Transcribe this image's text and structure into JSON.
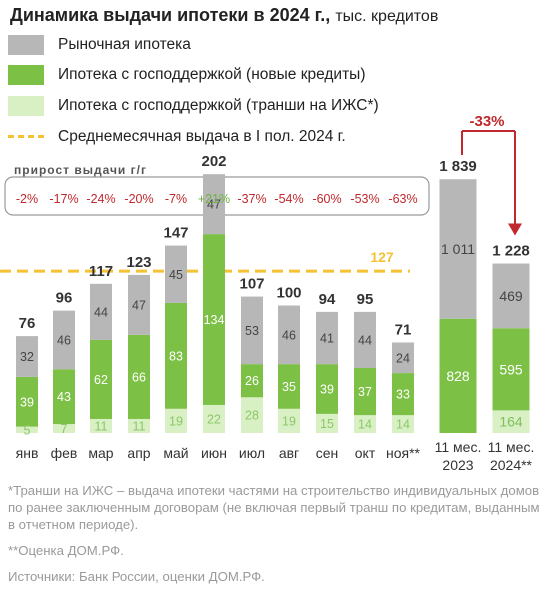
{
  "title_bold": "Динамика выдачи ипотеки в 2024 г.,",
  "title_unit": "тыс. кредитов",
  "growth_title": "прирост выдачи г/г",
  "footnotes": {
    "tranche_note": "*Транши на ИЖС – выдача ипотеки частями на строительство индивидуальных домов по ранее заключенным договорам (не включая первый транш по кредитам, выданным в отчетном периоде).",
    "estimate_note": "**Оценка ДОМ.РФ.",
    "sources": "Источники: Банк России, оценки ДОМ.РФ."
  },
  "colors": {
    "market": "#B7B7B7",
    "state_new": "#7CC045",
    "state_tranche": "#D9EFC4",
    "average_line": "#F5C234",
    "negative": "#C0282D",
    "positive": "#6DB33F"
  },
  "chart_data": {
    "type": "bar",
    "stacked": true,
    "categories": [
      "янв",
      "фев",
      "мар",
      "апр",
      "май",
      "июн",
      "июл",
      "авг",
      "сен",
      "окт",
      "ноя**"
    ],
    "series": [
      {
        "name": "Рыночная ипотека",
        "color": "#B7B7B7",
        "values": [
          32,
          46,
          44,
          47,
          45,
          47,
          53,
          46,
          41,
          44,
          24
        ]
      },
      {
        "name": "Ипотека с господдержкой (новые кредиты)",
        "color": "#7CC045",
        "values": [
          39,
          43,
          62,
          66,
          83,
          134,
          26,
          35,
          39,
          37,
          33
        ]
      },
      {
        "name": "Ипотека с господдержкой (транши на ИЖС*)",
        "color": "#D9EFC4",
        "values": [
          5,
          7,
          11,
          11,
          19,
          22,
          28,
          19,
          15,
          14,
          14
        ]
      }
    ],
    "totals": [
      76,
      96,
      117,
      123,
      147,
      202,
      107,
      100,
      94,
      95,
      71
    ],
    "yoy_growth": [
      "-2%",
      "-17%",
      "-24%",
      "-20%",
      "-7%",
      "+21%",
      "-37%",
      "-54%",
      "-60%",
      "-53%",
      "-63%"
    ],
    "reference_line": {
      "name": "Среднемесячная выдача в I пол. 2024 г.",
      "value": 127,
      "label": "127"
    },
    "cumulative": {
      "categories": [
        "11 мес.\n2023",
        "11 мес.\n2024**"
      ],
      "category_lines": [
        [
          "11 мес.",
          "2023"
        ],
        [
          "11 мес.",
          "2024**"
        ]
      ],
      "market": [
        1011,
        469
      ],
      "state_new": [
        828,
        595
      ],
      "state_tranche": [
        null,
        164
      ],
      "totals": [
        "1 839",
        "1 228"
      ],
      "market_labels": [
        "1 011",
        "469"
      ],
      "state_new_labels": [
        "828",
        "595"
      ],
      "state_tranche_labels": [
        "",
        "164"
      ],
      "change_label": "-33%"
    },
    "title": "Динамика выдачи ипотеки в 2024 г., тыс. кредитов",
    "legend_position": "top-left",
    "grid": false
  }
}
